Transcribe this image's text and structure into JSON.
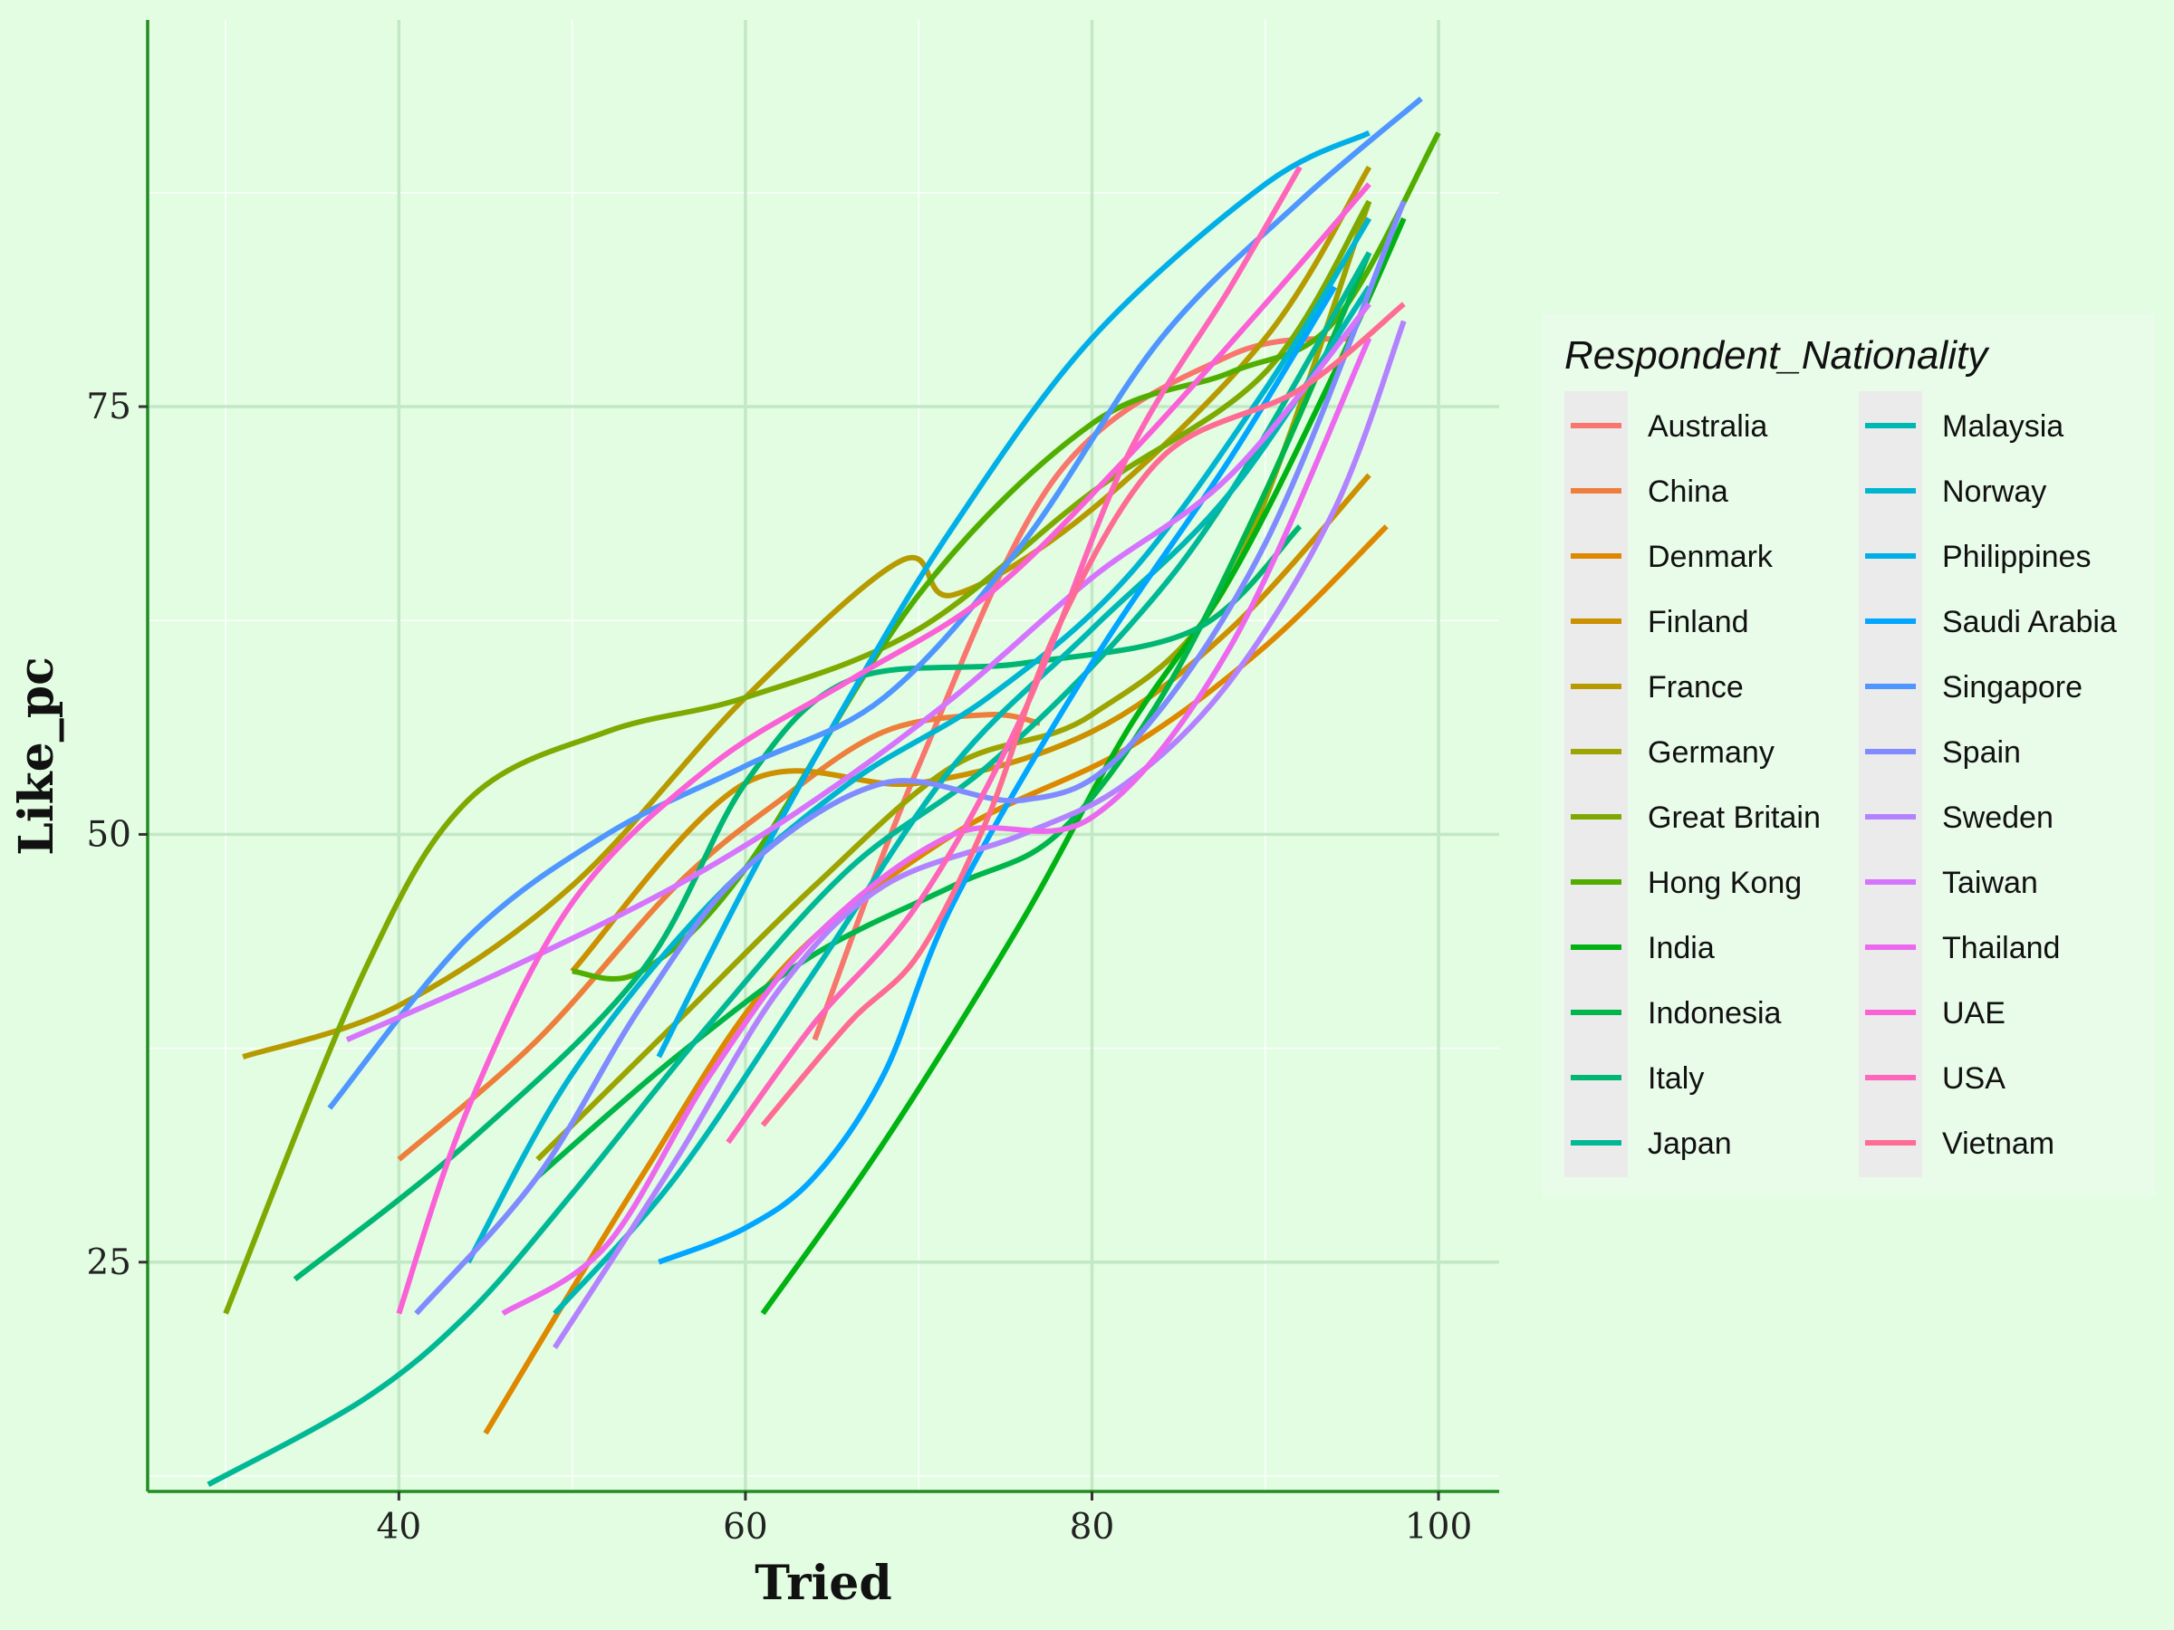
{
  "chart_data": {
    "type": "line",
    "title": "",
    "xlabel": "Tried",
    "ylabel": "Like_pc",
    "xlim": [
      25.5,
      103.5
    ],
    "ylim": [
      11.6,
      97.6
    ],
    "x_ticks": [
      40,
      60,
      80,
      100
    ],
    "x_tick_labels": [
      "40",
      "60",
      "80",
      "100"
    ],
    "y_ticks": [
      25,
      50,
      75
    ],
    "y_tick_labels": [
      "25",
      "50",
      "75"
    ],
    "grid": true,
    "legend": {
      "title": "Respondent_Nationality",
      "placement": "right",
      "columns": 2
    },
    "series": [
      {
        "name": "Australia",
        "color": "#F8766D",
        "points": [
          [
            64,
            38
          ],
          [
            70,
            54
          ],
          [
            78,
            71
          ],
          [
            88,
            78
          ],
          [
            95,
            79
          ]
        ]
      },
      {
        "name": "China",
        "color": "#EE7E3C",
        "points": [
          [
            40,
            31
          ],
          [
            48,
            38
          ],
          [
            56,
            47
          ],
          [
            62,
            52
          ],
          [
            68,
            56
          ],
          [
            74,
            57
          ],
          [
            77,
            56.5
          ]
        ]
      },
      {
        "name": "Denmark",
        "color": "#DE8800",
        "points": [
          [
            45,
            15
          ],
          [
            54,
            30
          ],
          [
            62,
            42
          ],
          [
            72,
            50
          ],
          [
            82,
            55
          ],
          [
            90,
            61
          ],
          [
            97,
            68
          ]
        ]
      },
      {
        "name": "Finland",
        "color": "#CC9000",
        "points": [
          [
            50,
            42
          ],
          [
            60,
            53
          ],
          [
            70,
            53
          ],
          [
            80,
            56
          ],
          [
            88,
            62
          ],
          [
            96,
            71
          ]
        ]
      },
      {
        "name": "France",
        "color": "#B69A00",
        "points": [
          [
            31,
            37
          ],
          [
            40,
            40
          ],
          [
            50,
            47
          ],
          [
            60,
            58
          ],
          [
            69,
            66
          ],
          [
            72,
            64
          ],
          [
            80,
            69
          ],
          [
            90,
            79
          ],
          [
            96,
            89
          ]
        ]
      },
      {
        "name": "Germany",
        "color": "#9DA300",
        "points": [
          [
            48,
            31
          ],
          [
            56,
            39
          ],
          [
            64,
            47
          ],
          [
            72,
            54
          ],
          [
            80,
            57
          ],
          [
            88,
            65
          ],
          [
            96,
            87
          ]
        ]
      },
      {
        "name": "Great Britain",
        "color": "#7EA901",
        "points": [
          [
            30,
            22
          ],
          [
            38,
            42
          ],
          [
            44,
            52
          ],
          [
            52,
            56
          ],
          [
            60,
            58
          ],
          [
            70,
            62
          ],
          [
            80,
            70
          ],
          [
            90,
            77
          ],
          [
            96,
            87
          ]
        ]
      },
      {
        "name": "Hong Kong",
        "color": "#51AE00",
        "points": [
          [
            50,
            42
          ],
          [
            54,
            42
          ],
          [
            60,
            48
          ],
          [
            70,
            64
          ],
          [
            80,
            74
          ],
          [
            88,
            77
          ],
          [
            94,
            80
          ],
          [
            100,
            91
          ]
        ]
      },
      {
        "name": "India",
        "color": "#00B212",
        "points": [
          [
            61,
            22
          ],
          [
            68,
            32
          ],
          [
            76,
            45
          ],
          [
            82,
            56
          ],
          [
            88,
            65
          ],
          [
            94,
            77
          ],
          [
            98,
            86
          ]
        ]
      },
      {
        "name": "Indonesia",
        "color": "#00B54A",
        "points": [
          [
            48,
            30
          ],
          [
            56,
            37
          ],
          [
            64,
            43
          ],
          [
            72,
            47
          ],
          [
            78,
            50
          ],
          [
            84,
            58
          ],
          [
            90,
            70
          ],
          [
            96,
            84
          ]
        ]
      },
      {
        "name": "Italy",
        "color": "#00B673",
        "points": [
          [
            34,
            24
          ],
          [
            44,
            32
          ],
          [
            54,
            42
          ],
          [
            60,
            53
          ],
          [
            66,
            59
          ],
          [
            76,
            60
          ],
          [
            86,
            62
          ],
          [
            92,
            68
          ]
        ]
      },
      {
        "name": "Japan",
        "color": "#00B895",
        "points": [
          [
            29,
            12
          ],
          [
            38,
            17
          ],
          [
            44,
            22
          ],
          [
            50,
            29
          ],
          [
            58,
            39
          ],
          [
            66,
            48
          ],
          [
            74,
            54
          ],
          [
            82,
            62
          ],
          [
            88,
            70
          ],
          [
            96,
            84
          ]
        ]
      },
      {
        "name": "Malaysia",
        "color": "#00B8B3",
        "points": [
          [
            49,
            22
          ],
          [
            56,
            30
          ],
          [
            64,
            42
          ],
          [
            72,
            54
          ],
          [
            80,
            62
          ],
          [
            88,
            70
          ],
          [
            96,
            82
          ]
        ]
      },
      {
        "name": "Norway",
        "color": "#00B5D0",
        "points": [
          [
            44,
            25
          ],
          [
            50,
            36
          ],
          [
            58,
            46
          ],
          [
            66,
            53
          ],
          [
            74,
            58
          ],
          [
            82,
            65
          ],
          [
            90,
            76
          ],
          [
            96,
            86
          ]
        ]
      },
      {
        "name": "Philippines",
        "color": "#00AFE7",
        "points": [
          [
            55,
            37
          ],
          [
            60,
            47
          ],
          [
            66,
            58
          ],
          [
            72,
            68
          ],
          [
            80,
            79
          ],
          [
            90,
            88
          ],
          [
            96,
            91
          ]
        ]
      },
      {
        "name": "Saudi Arabia",
        "color": "#00A6FF",
        "points": [
          [
            55,
            25
          ],
          [
            60,
            27
          ],
          [
            64,
            30
          ],
          [
            68,
            36
          ],
          [
            72,
            46
          ],
          [
            80,
            60
          ],
          [
            88,
            72
          ],
          [
            94,
            82
          ]
        ]
      },
      {
        "name": "Singapore",
        "color": "#4F96FF",
        "points": [
          [
            36,
            34
          ],
          [
            44,
            44
          ],
          [
            52,
            50
          ],
          [
            60,
            54
          ],
          [
            68,
            58
          ],
          [
            76,
            67
          ],
          [
            84,
            79
          ],
          [
            92,
            87
          ],
          [
            99,
            93
          ]
        ]
      },
      {
        "name": "Spain",
        "color": "#7F8BFF",
        "points": [
          [
            41,
            22
          ],
          [
            48,
            30
          ],
          [
            54,
            40
          ],
          [
            60,
            48
          ],
          [
            68,
            53
          ],
          [
            76,
            52
          ],
          [
            82,
            55
          ],
          [
            90,
            67
          ],
          [
            98,
            87
          ]
        ]
      },
      {
        "name": "Sweden",
        "color": "#B383FF",
        "points": [
          [
            49,
            20
          ],
          [
            56,
            31
          ],
          [
            62,
            41
          ],
          [
            68,
            47
          ],
          [
            76,
            50
          ],
          [
            82,
            53
          ],
          [
            88,
            59
          ],
          [
            94,
            69
          ],
          [
            98,
            80
          ]
        ]
      },
      {
        "name": "Taiwan",
        "color": "#D674FD",
        "points": [
          [
            37,
            38
          ],
          [
            46,
            42
          ],
          [
            56,
            47
          ],
          [
            64,
            52
          ],
          [
            72,
            58
          ],
          [
            80,
            65
          ],
          [
            88,
            71
          ],
          [
            96,
            81
          ]
        ]
      },
      {
        "name": "Thailand",
        "color": "#EC69EF",
        "points": [
          [
            46,
            22
          ],
          [
            52,
            26
          ],
          [
            58,
            36
          ],
          [
            64,
            44
          ],
          [
            72,
            50
          ],
          [
            80,
            51
          ],
          [
            88,
            61
          ],
          [
            96,
            79
          ]
        ]
      },
      {
        "name": "UAE",
        "color": "#FB61D7",
        "points": [
          [
            40,
            22
          ],
          [
            44,
            34
          ],
          [
            50,
            46
          ],
          [
            58,
            54
          ],
          [
            66,
            59
          ],
          [
            74,
            64
          ],
          [
            82,
            72
          ],
          [
            90,
            81
          ],
          [
            96,
            88
          ]
        ]
      },
      {
        "name": "USA",
        "color": "#FF65B8",
        "points": [
          [
            59,
            32
          ],
          [
            64,
            39
          ],
          [
            70,
            46
          ],
          [
            76,
            57
          ],
          [
            82,
            72
          ],
          [
            88,
            82
          ],
          [
            92,
            89
          ]
        ]
      },
      {
        "name": "Vietnam",
        "color": "#FF6C93",
        "points": [
          [
            61,
            33
          ],
          [
            66,
            39
          ],
          [
            70,
            43
          ],
          [
            74,
            51
          ],
          [
            78,
            62
          ],
          [
            84,
            72
          ],
          [
            92,
            76
          ],
          [
            98,
            81
          ]
        ]
      }
    ]
  }
}
